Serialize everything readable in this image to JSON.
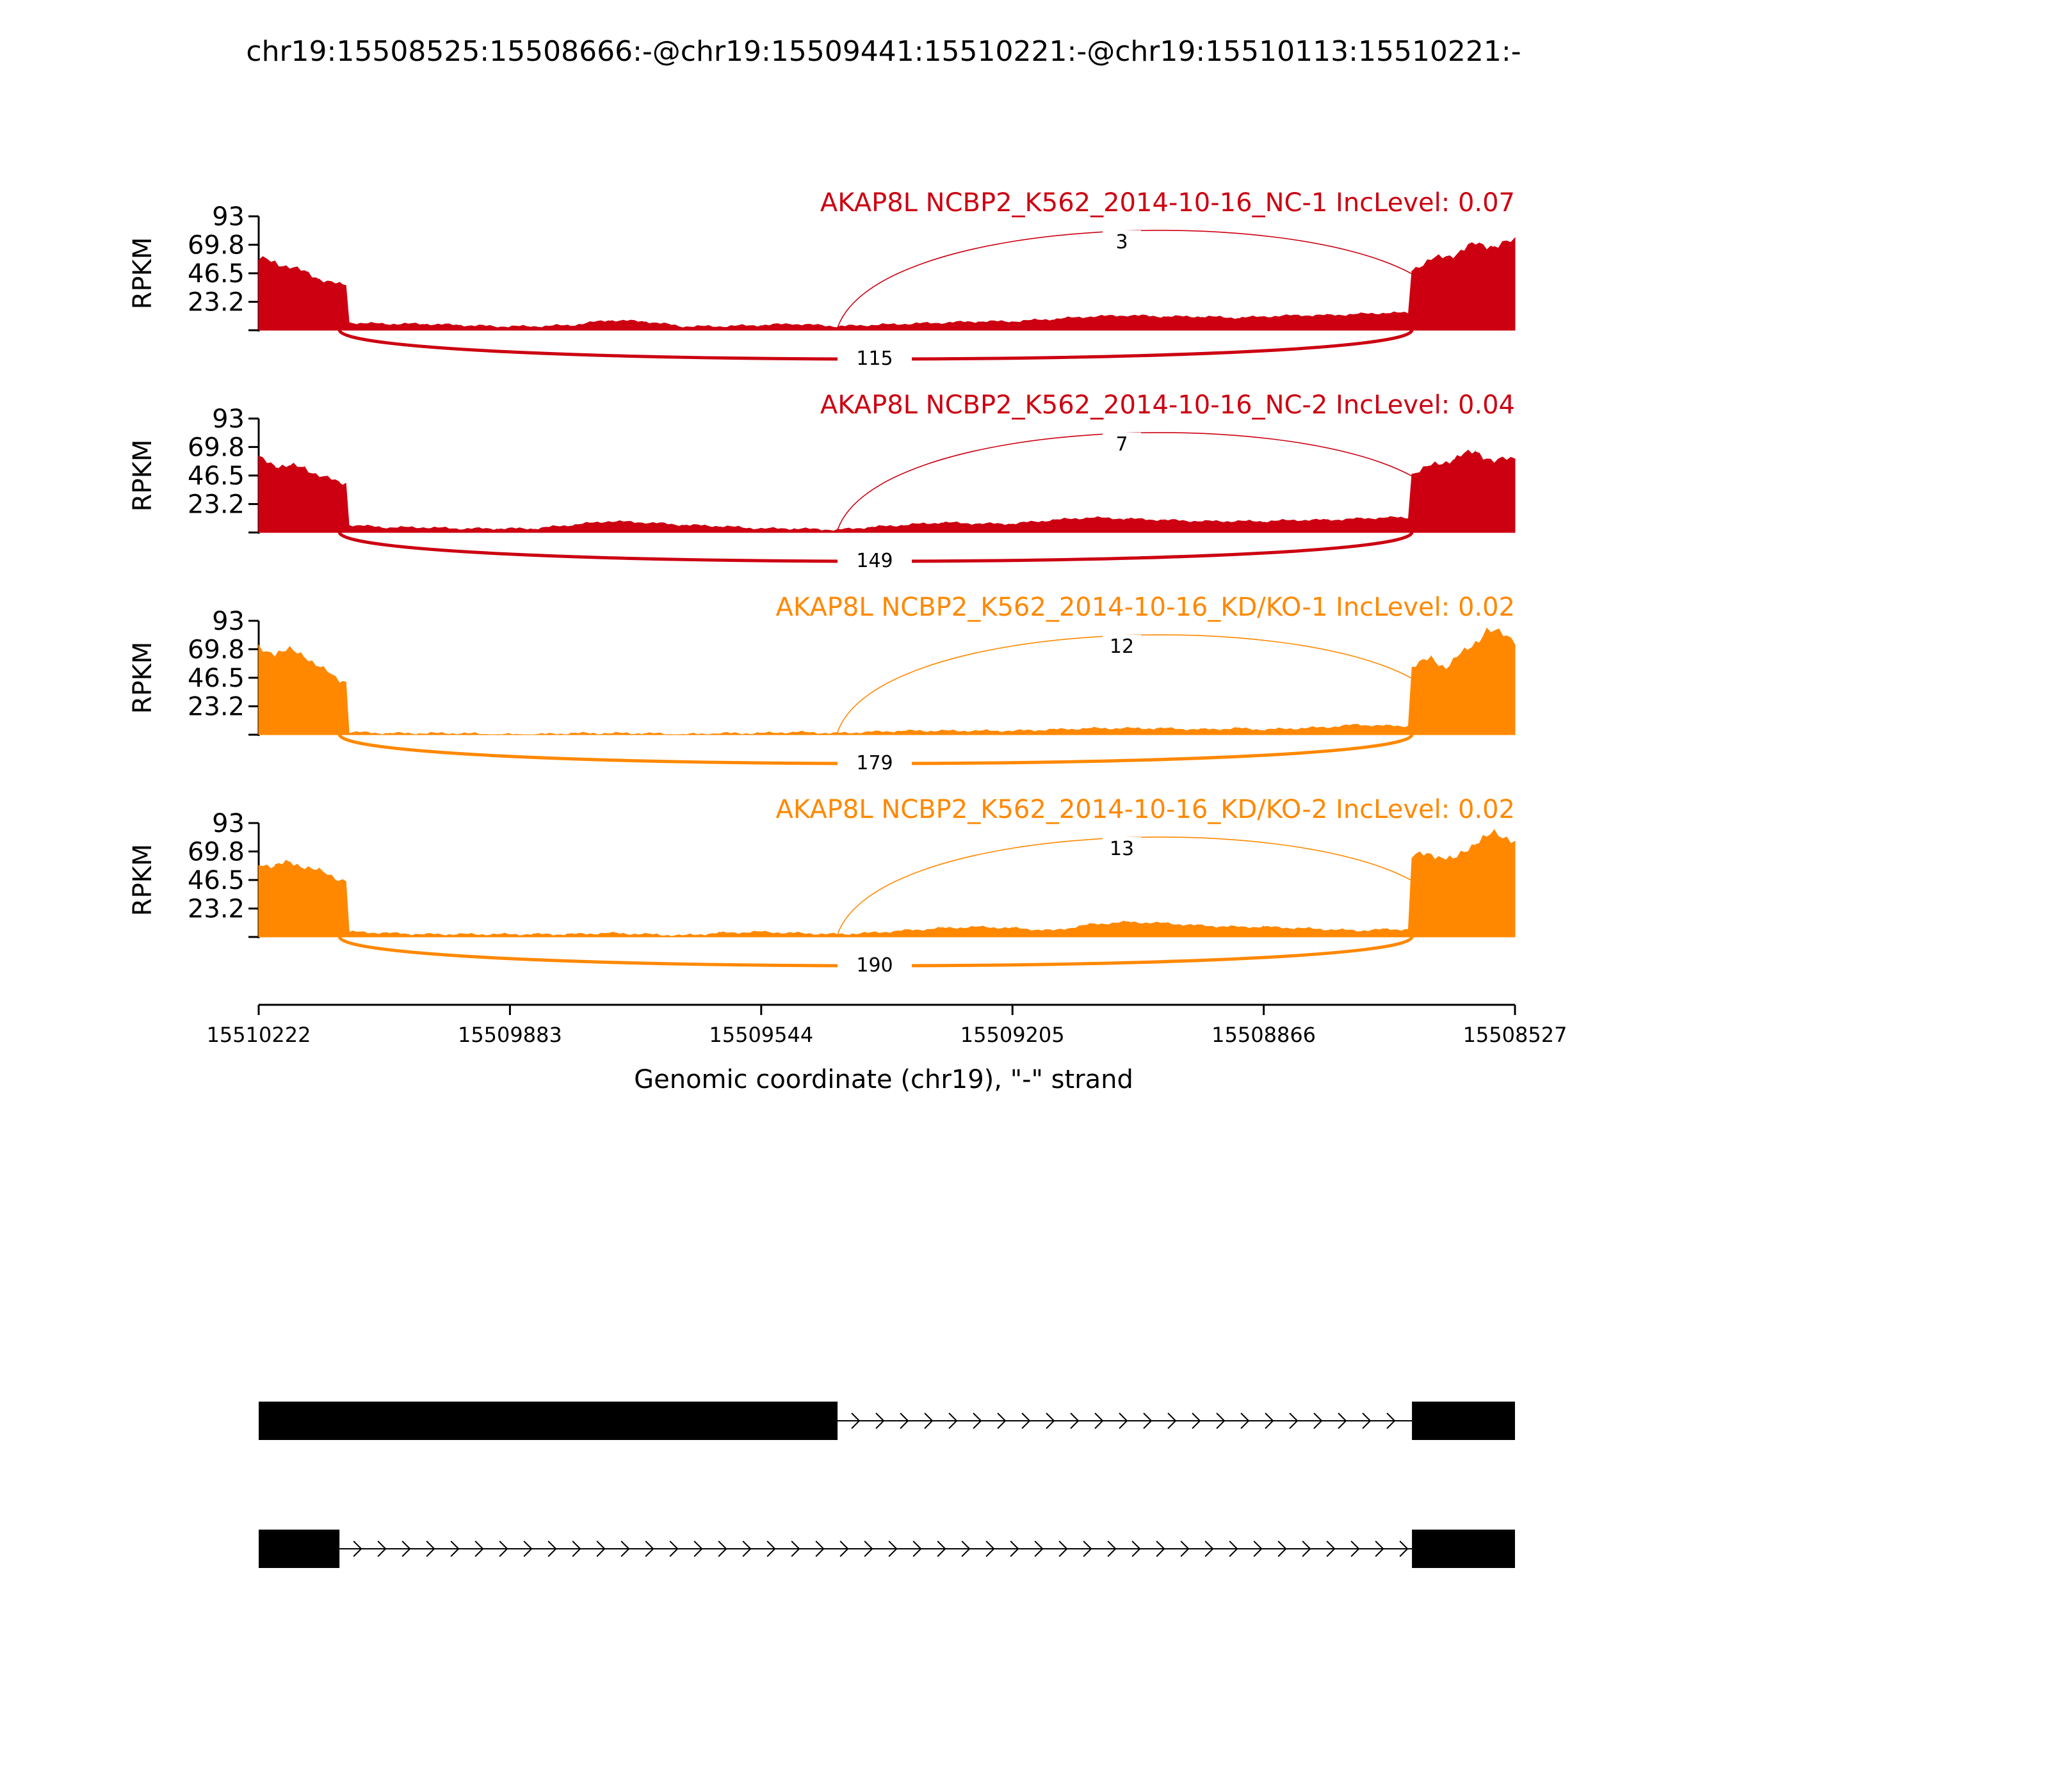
{
  "title": "chr19:15508525:15508666:-@chr19:15509441:15510221:-@chr19:15510113:15510221:-",
  "chart_data": {
    "type": "area",
    "ylabel": "RPKM",
    "ylim": [
      0,
      93
    ],
    "yticks": [
      "93",
      "69.8",
      "46.5",
      "23.2"
    ],
    "xlabel": "Genomic coordinate (chr19), \"-\" strand",
    "xlim": [
      15510222,
      15508527
    ],
    "xticks": [
      "15510222",
      "15509883",
      "15509544",
      "15509205",
      "15508866",
      "15508527"
    ],
    "exons": [
      [
        15510222,
        15510113
      ],
      [
        15510222,
        15509441
      ],
      [
        15508666,
        15508527
      ]
    ],
    "series": [
      {
        "name": "AKAP8L NCBP2_K562_2014-10-16_NC-1 IncLevel: 0.07",
        "color": "#cc0011",
        "inclusion_junction_reads": "3",
        "skipping_junction_reads": "115",
        "coverage": [
          [
            15510222,
            58
          ],
          [
            15510200,
            55
          ],
          [
            15510180,
            52
          ],
          [
            15510160,
            47
          ],
          [
            15510140,
            42
          ],
          [
            15510113,
            37
          ],
          [
            15510100,
            6
          ],
          [
            15510050,
            5
          ],
          [
            15510000,
            5
          ],
          [
            15509950,
            4
          ],
          [
            15509900,
            3
          ],
          [
            15509850,
            3
          ],
          [
            15509800,
            4
          ],
          [
            15509750,
            8
          ],
          [
            15509700,
            7
          ],
          [
            15509650,
            3
          ],
          [
            15509600,
            3
          ],
          [
            15509544,
            4
          ],
          [
            15509500,
            5
          ],
          [
            15509441,
            3
          ],
          [
            15509400,
            4
          ],
          [
            15509350,
            5
          ],
          [
            15509300,
            6
          ],
          [
            15509250,
            7
          ],
          [
            15509205,
            7
          ],
          [
            15509150,
            9
          ],
          [
            15509100,
            11
          ],
          [
            15509050,
            12
          ],
          [
            15509000,
            11
          ],
          [
            15508950,
            11
          ],
          [
            15508900,
            10
          ],
          [
            15508866,
            11
          ],
          [
            15508820,
            12
          ],
          [
            15508780,
            12
          ],
          [
            15508740,
            13
          ],
          [
            15508700,
            14
          ],
          [
            15508666,
            50
          ],
          [
            15508640,
            57
          ],
          [
            15508610,
            62
          ],
          [
            15508580,
            70
          ],
          [
            15508555,
            69
          ],
          [
            15508527,
            72
          ]
        ]
      },
      {
        "name": "AKAP8L NCBP2_K562_2014-10-16_NC-2 IncLevel: 0.04",
        "color": "#cc0011",
        "inclusion_junction_reads": "7",
        "skipping_junction_reads": "149",
        "coverage": [
          [
            15510222,
            60
          ],
          [
            15510200,
            55
          ],
          [
            15510180,
            54
          ],
          [
            15510160,
            52
          ],
          [
            15510140,
            47
          ],
          [
            15510113,
            40
          ],
          [
            15510100,
            6
          ],
          [
            15510050,
            4
          ],
          [
            15510000,
            4
          ],
          [
            15509950,
            3
          ],
          [
            15509900,
            3
          ],
          [
            15509850,
            3
          ],
          [
            15509800,
            6
          ],
          [
            15509750,
            9
          ],
          [
            15509700,
            8
          ],
          [
            15509650,
            6
          ],
          [
            15509600,
            5
          ],
          [
            15509544,
            3
          ],
          [
            15509500,
            3
          ],
          [
            15509441,
            2
          ],
          [
            15509400,
            4
          ],
          [
            15509350,
            6
          ],
          [
            15509300,
            8
          ],
          [
            15509250,
            7
          ],
          [
            15509205,
            7
          ],
          [
            15509150,
            10
          ],
          [
            15509100,
            12
          ],
          [
            15509050,
            11
          ],
          [
            15509000,
            10
          ],
          [
            15508950,
            9
          ],
          [
            15508900,
            9
          ],
          [
            15508866,
            9
          ],
          [
            15508820,
            10
          ],
          [
            15508780,
            10
          ],
          [
            15508740,
            11
          ],
          [
            15508700,
            12
          ],
          [
            15508666,
            48
          ],
          [
            15508640,
            54
          ],
          [
            15508610,
            60
          ],
          [
            15508580,
            66
          ],
          [
            15508555,
            58
          ],
          [
            15508527,
            60
          ]
        ]
      },
      {
        "name": "AKAP8L NCBP2_K562_2014-10-16_KD/KO-1 IncLevel: 0.02",
        "color": "#ff8800",
        "inclusion_junction_reads": "12",
        "skipping_junction_reads": "179",
        "coverage": [
          [
            15510222,
            70
          ],
          [
            15510200,
            67
          ],
          [
            15510180,
            68
          ],
          [
            15510160,
            65
          ],
          [
            15510140,
            55
          ],
          [
            15510113,
            44
          ],
          [
            15510100,
            2
          ],
          [
            15510050,
            1
          ],
          [
            15510000,
            1
          ],
          [
            15509950,
            1
          ],
          [
            15509900,
            0
          ],
          [
            15509850,
            0
          ],
          [
            15509800,
            1
          ],
          [
            15509750,
            1
          ],
          [
            15509700,
            1
          ],
          [
            15509650,
            0
          ],
          [
            15509600,
            1
          ],
          [
            15509544,
            1
          ],
          [
            15509500,
            2
          ],
          [
            15509441,
            1
          ],
          [
            15509400,
            2
          ],
          [
            15509350,
            3
          ],
          [
            15509300,
            3
          ],
          [
            15509250,
            3
          ],
          [
            15509205,
            3
          ],
          [
            15509150,
            4
          ],
          [
            15509100,
            5
          ],
          [
            15509050,
            5
          ],
          [
            15509000,
            5
          ],
          [
            15508950,
            4
          ],
          [
            15508900,
            5
          ],
          [
            15508866,
            4
          ],
          [
            15508820,
            5
          ],
          [
            15508780,
            6
          ],
          [
            15508740,
            8
          ],
          [
            15508700,
            7
          ],
          [
            15508666,
            55
          ],
          [
            15508640,
            62
          ],
          [
            15508620,
            55
          ],
          [
            15508590,
            70
          ],
          [
            15508565,
            85
          ],
          [
            15508527,
            78
          ]
        ]
      },
      {
        "name": "AKAP8L NCBP2_K562_2014-10-16_KD/KO-2 IncLevel: 0.02",
        "color": "#ff8800",
        "inclusion_junction_reads": "13",
        "skipping_junction_reads": "190",
        "coverage": [
          [
            15510222,
            60
          ],
          [
            15510200,
            58
          ],
          [
            15510180,
            60
          ],
          [
            15510160,
            58
          ],
          [
            15510140,
            53
          ],
          [
            15510113,
            47
          ],
          [
            15510100,
            4
          ],
          [
            15510050,
            3
          ],
          [
            15510000,
            2
          ],
          [
            15509950,
            2
          ],
          [
            15509900,
            2
          ],
          [
            15509850,
            2
          ],
          [
            15509800,
            2
          ],
          [
            15509750,
            3
          ],
          [
            15509700,
            2
          ],
          [
            15509650,
            1
          ],
          [
            15509600,
            3
          ],
          [
            15509544,
            4
          ],
          [
            15509500,
            3
          ],
          [
            15509441,
            2
          ],
          [
            15509400,
            3
          ],
          [
            15509350,
            5
          ],
          [
            15509300,
            7
          ],
          [
            15509250,
            8
          ],
          [
            15509205,
            7
          ],
          [
            15509150,
            5
          ],
          [
            15509100,
            10
          ],
          [
            15509050,
            12
          ],
          [
            15509000,
            11
          ],
          [
            15508950,
            9
          ],
          [
            15508900,
            8
          ],
          [
            15508866,
            8
          ],
          [
            15508820,
            7
          ],
          [
            15508780,
            6
          ],
          [
            15508740,
            5
          ],
          [
            15508700,
            6
          ],
          [
            15508666,
            65
          ],
          [
            15508640,
            68
          ],
          [
            15508610,
            62
          ],
          [
            15508580,
            78
          ],
          [
            15508555,
            83
          ],
          [
            15508527,
            80
          ]
        ]
      }
    ],
    "isoforms": [
      {
        "exons": [
          [
            15510222,
            15509441
          ],
          [
            15508666,
            15508527
          ]
        ]
      },
      {
        "exons": [
          [
            15510222,
            15510113
          ],
          [
            15508666,
            15508527
          ]
        ]
      }
    ]
  }
}
